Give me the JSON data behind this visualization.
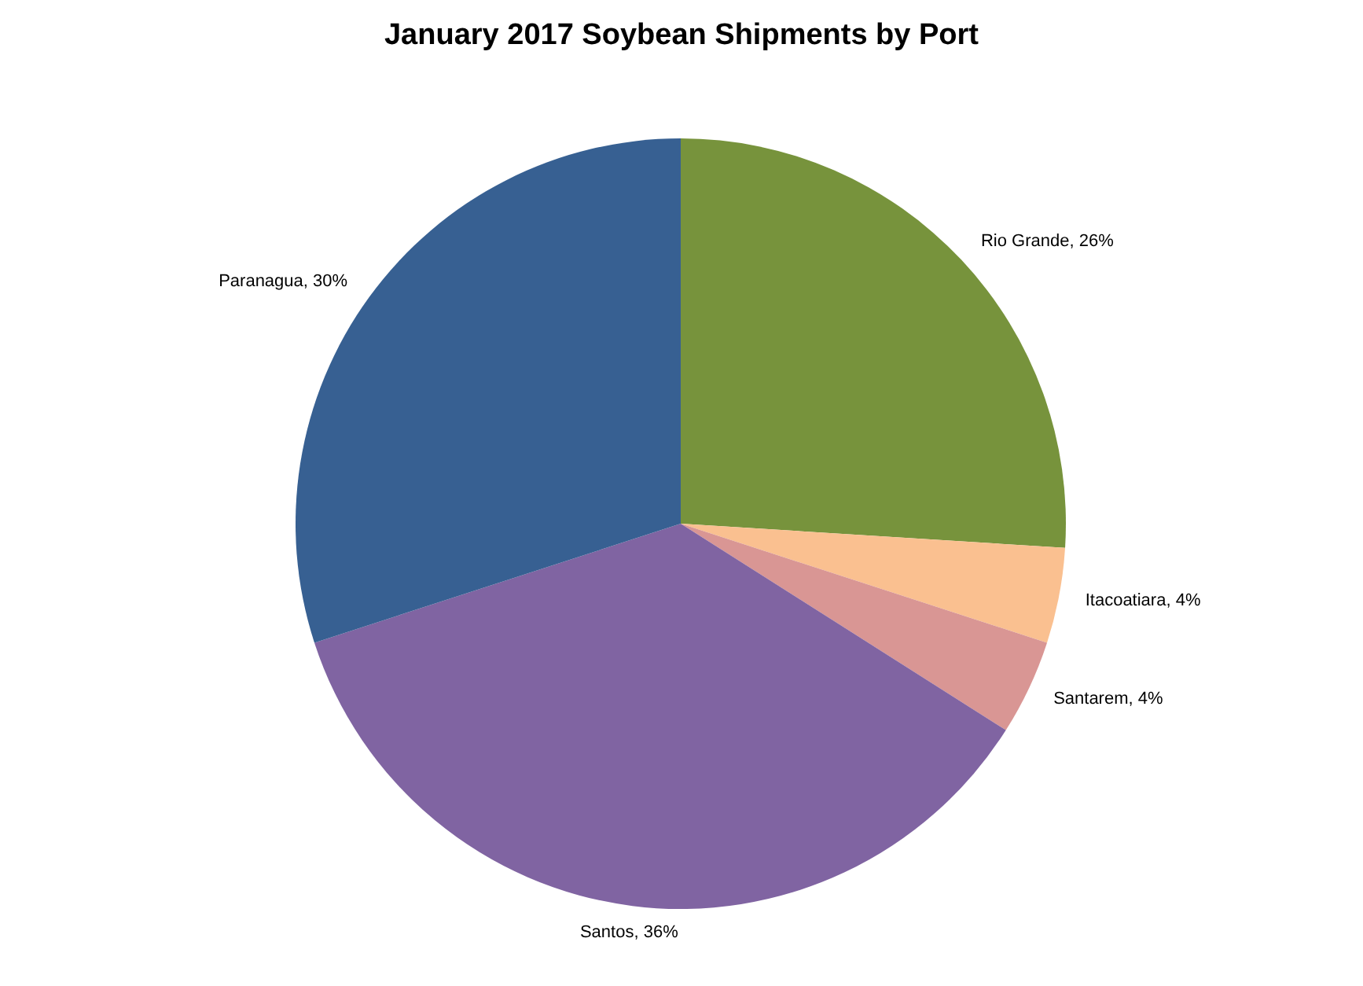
{
  "chart_data": {
    "type": "pie",
    "title": "January 2017 Soybean Shipments by Port",
    "categories": [
      "Rio Grande",
      "Itacoatiara",
      "Santarem",
      "Santos",
      "Paranagua"
    ],
    "values": [
      26,
      4,
      4,
      36,
      30
    ],
    "colors": [
      "#77933c",
      "#fac090",
      "#d99694",
      "#8064a2",
      "#376092"
    ],
    "value_labels": [
      "26%",
      "4%",
      "4%",
      "36%",
      "30%"
    ]
  }
}
